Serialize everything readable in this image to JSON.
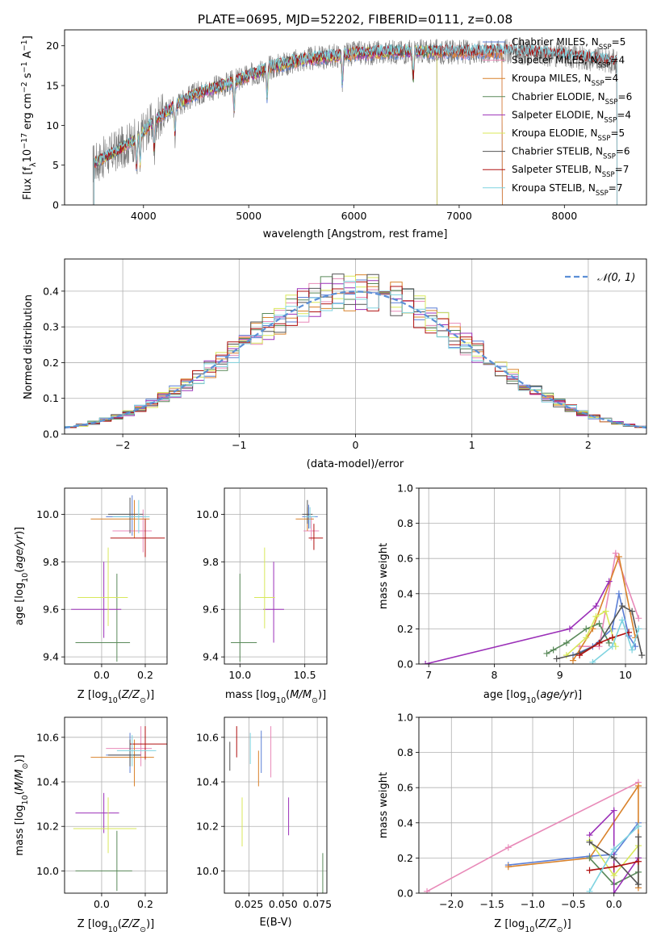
{
  "figure": {
    "title": "PLATE=0695, MJD=52202, FIBERID=0111, z=0.08"
  },
  "colors": {
    "chabrier_miles": "#5b7fd6",
    "salpeter_miles": "#e889b8",
    "kroupa_miles": "#d9822b",
    "chabrier_elodie": "#5a8a5a",
    "salpeter_elodie": "#9b30b8",
    "kroupa_elodie": "#d8e85a",
    "chabrier_stelib": "#555555",
    "salpeter_stelib": "#b01010",
    "kroupa_stelib": "#7fd3e0",
    "normal_fit": "#5b8fd6",
    "grid": "#b0b0b0"
  },
  "chart_data": [
    {
      "id": "spectrum",
      "type": "line",
      "xlabel": "wavelength [Angstrom, rest frame]",
      "ylabel": "Flux [f_λ 10^-17 erg cm^-2 s^-1 A^-1]",
      "xlim": [
        3250,
        8780
      ],
      "ylim": [
        0,
        22
      ],
      "xticks": [
        4000,
        5000,
        6000,
        7000,
        8000
      ],
      "yticks": [
        0,
        5,
        10,
        15,
        20
      ],
      "grid": false,
      "legend_position": "right",
      "continuum_points": [
        [
          3500,
          5
        ],
        [
          3700,
          6.5
        ],
        [
          3900,
          8
        ],
        [
          4100,
          10.5
        ],
        [
          4300,
          12.5
        ],
        [
          4500,
          14
        ],
        [
          4800,
          15.2
        ],
        [
          5000,
          16.2
        ],
        [
          5200,
          17.3
        ],
        [
          5500,
          18.2
        ],
        [
          5800,
          18.7
        ],
        [
          6000,
          19.0
        ],
        [
          6300,
          19.2
        ],
        [
          6600,
          19.3
        ],
        [
          7000,
          19.2
        ],
        [
          7500,
          19.3
        ],
        [
          8000,
          18.8
        ],
        [
          8300,
          18.3
        ],
        [
          8500,
          18
        ]
      ],
      "legend": [
        {
          "key": "chabrier_miles",
          "label": "Chabrier MILES, N",
          "sub": "SSP",
          "tail": "=5",
          "xmax": 7410
        },
        {
          "key": "salpeter_miles",
          "label": "Salpeter MILES, N",
          "sub": "SSP",
          "tail": "=4",
          "xmax": 7410
        },
        {
          "key": "kroupa_miles",
          "label": "Kroupa MILES, N",
          "sub": "SSP",
          "tail": "=4",
          "xmax": 7410
        },
        {
          "key": "chabrier_elodie",
          "label": "Chabrier ELODIE, N",
          "sub": "SSP",
          "tail": "=6",
          "xmax": 6790
        },
        {
          "key": "salpeter_elodie",
          "label": "Salpeter ELODIE, N",
          "sub": "SSP",
          "tail": "=4",
          "xmax": 6790
        },
        {
          "key": "kroupa_elodie",
          "label": "Kroupa ELODIE, N",
          "sub": "SSP",
          "tail": "=5",
          "xmax": 6790
        },
        {
          "key": "chabrier_stelib",
          "label": "Chabrier STELIB, N",
          "sub": "SSP",
          "tail": "=6",
          "xmax": 8500
        },
        {
          "key": "salpeter_stelib",
          "label": "Salpeter STELIB, N",
          "sub": "SSP",
          "tail": "=7",
          "xmax": 8500
        },
        {
          "key": "kroupa_stelib",
          "label": "Kroupa STELIB, N",
          "sub": "SSP",
          "tail": "=7",
          "xmax": 8500
        }
      ]
    },
    {
      "id": "residuals",
      "type": "histogram",
      "xlabel": "(data-model)/error",
      "ylabel": "Normed distribution",
      "xlim": [
        -2.5,
        2.5
      ],
      "ylim": [
        0,
        0.49
      ],
      "xticks": [
        -2,
        -1,
        0,
        1,
        2
      ],
      "yticks": [
        0.0,
        0.1,
        0.2,
        0.3,
        0.4
      ],
      "grid": true,
      "bin_width": 0.1,
      "legend_label": "𝒩(0, 1)",
      "legend_position": "top-right"
    },
    {
      "id": "age_vs_Z",
      "type": "errorbar",
      "xlabel": "Z [log10(Z/Z⊙)]",
      "ylabel": "age  [log10(age/yr)]",
      "xlim": [
        -0.17,
        0.3
      ],
      "ylim": [
        9.37,
        10.11
      ],
      "xticks": [
        0.0,
        0.2
      ],
      "yticks": [
        9.4,
        9.6,
        9.8,
        10.0
      ],
      "grid": true,
      "points": [
        {
          "key": "chabrier_miles",
          "x": 0.14,
          "xerr": [
            0.12,
            0.05
          ],
          "y": 9.99,
          "yerr": [
            0.08,
            0.09
          ]
        },
        {
          "key": "salpeter_miles",
          "x": 0.19,
          "xerr": [
            0.14,
            0.04
          ],
          "y": 9.93,
          "yerr": [
            0.09,
            0.09
          ]
        },
        {
          "key": "kroupa_miles",
          "x": 0.15,
          "xerr": [
            0.2,
            0.07
          ],
          "y": 9.98,
          "yerr": [
            0.08,
            0.08
          ]
        },
        {
          "key": "chabrier_elodie",
          "x": 0.07,
          "xerr": [
            0.19,
            0.06
          ],
          "y": 9.46,
          "yerr": [
            0.08,
            0.29
          ]
        },
        {
          "key": "salpeter_elodie",
          "x": 0.01,
          "xerr": [
            0.15,
            0.08
          ],
          "y": 9.6,
          "yerr": [
            0.12,
            0.2
          ]
        },
        {
          "key": "kroupa_elodie",
          "x": 0.03,
          "xerr": [
            0.14,
            0.09
          ],
          "y": 9.65,
          "yerr": [
            0.12,
            0.21
          ]
        },
        {
          "key": "chabrier_stelib",
          "x": 0.13,
          "xerr": [
            0.1,
            0.06
          ],
          "y": 10.0,
          "yerr": [
            0.08,
            0.07
          ]
        },
        {
          "key": "salpeter_stelib",
          "x": 0.2,
          "xerr": [
            0.16,
            0.09
          ],
          "y": 9.9,
          "yerr": [
            0.08,
            0.08
          ]
        },
        {
          "key": "kroupa_stelib",
          "x": 0.17,
          "xerr": [
            0.12,
            0.05
          ],
          "y": 9.99,
          "yerr": [
            0.07,
            0.07
          ]
        }
      ]
    },
    {
      "id": "age_vs_mass",
      "type": "errorbar",
      "xlabel": "mass [log10(M/M⊙)]",
      "ylabel": "",
      "xlim": [
        9.88,
        10.67
      ],
      "ylim": [
        9.37,
        10.11
      ],
      "xticks": [
        10.0,
        10.5
      ],
      "yticks": [
        9.4,
        9.6,
        9.8,
        10.0
      ],
      "grid": true,
      "points": [
        {
          "key": "chabrier_miles",
          "x": 10.53,
          "xerr": [
            0.05,
            0.07
          ],
          "y": 9.99,
          "yerr": [
            0.05,
            0.05
          ]
        },
        {
          "key": "salpeter_miles",
          "x": 10.55,
          "xerr": [
            0.06,
            0.06
          ],
          "y": 9.93,
          "yerr": [
            0.04,
            0.06
          ]
        },
        {
          "key": "kroupa_miles",
          "x": 10.52,
          "xerr": [
            0.09,
            0.05
          ],
          "y": 9.98,
          "yerr": [
            0.05,
            0.05
          ]
        },
        {
          "key": "chabrier_elodie",
          "x": 10.0,
          "xerr": [
            0.07,
            0.13
          ],
          "y": 9.46,
          "yerr": [
            0.08,
            0.29
          ]
        },
        {
          "key": "salpeter_elodie",
          "x": 10.26,
          "xerr": [
            0.08,
            0.08
          ],
          "y": 9.6,
          "yerr": [
            0.14,
            0.2
          ]
        },
        {
          "key": "kroupa_elodie",
          "x": 10.19,
          "xerr": [
            0.08,
            0.08
          ],
          "y": 9.65,
          "yerr": [
            0.13,
            0.21
          ]
        },
        {
          "key": "chabrier_stelib",
          "x": 10.52,
          "xerr": [
            0.04,
            0.04
          ],
          "y": 10.0,
          "yerr": [
            0.04,
            0.06
          ]
        },
        {
          "key": "salpeter_stelib",
          "x": 10.57,
          "xerr": [
            0.04,
            0.07
          ],
          "y": 9.9,
          "yerr": [
            0.05,
            0.06
          ]
        },
        {
          "key": "kroupa_stelib",
          "x": 10.54,
          "xerr": [
            0.04,
            0.04
          ],
          "y": 9.99,
          "yerr": [
            0.05,
            0.04
          ]
        }
      ]
    },
    {
      "id": "weights_vs_age",
      "type": "line",
      "xlabel": "age  [log10(age/yr)]",
      "ylabel": "mass weight",
      "xlim": [
        6.85,
        10.32
      ],
      "ylim": [
        0,
        1.0
      ],
      "xticks": [
        7,
        8,
        9,
        10
      ],
      "yticks": [
        0.0,
        0.2,
        0.4,
        0.6,
        0.8,
        1.0
      ],
      "grid": true,
      "series": [
        {
          "key": "chabrier_miles",
          "x": [
            9.2,
            9.5,
            9.8,
            9.9,
            10.05,
            10.15
          ],
          "y": [
            0.05,
            0.1,
            0.2,
            0.4,
            0.16,
            0.1
          ]
        },
        {
          "key": "salpeter_miles",
          "x": [
            9.3,
            9.6,
            9.85,
            10.2
          ],
          "y": [
            0.1,
            0.1,
            0.63,
            0.26
          ]
        },
        {
          "key": "kroupa_miles",
          "x": [
            9.2,
            9.5,
            9.9,
            10.15
          ],
          "y": [
            0.02,
            0.2,
            0.61,
            0.15
          ]
        },
        {
          "key": "chabrier_elodie",
          "x": [
            8.8,
            8.9,
            9.1,
            9.4,
            9.6,
            9.75
          ],
          "y": [
            0.06,
            0.08,
            0.12,
            0.2,
            0.23,
            0.12
          ]
        },
        {
          "key": "salpeter_elodie",
          "x": [
            6.95,
            9.15,
            9.55,
            9.75
          ],
          "y": [
            0.0,
            0.2,
            0.33,
            0.47
          ]
        },
        {
          "key": "kroupa_elodie",
          "x": [
            9.1,
            9.4,
            9.55,
            9.7,
            9.85
          ],
          "y": [
            0.05,
            0.15,
            0.27,
            0.3,
            0.1
          ]
        },
        {
          "key": "chabrier_stelib",
          "x": [
            8.95,
            9.3,
            9.6,
            9.95,
            10.1,
            10.25
          ],
          "y": [
            0.03,
            0.06,
            0.12,
            0.33,
            0.3,
            0.05
          ]
        },
        {
          "key": "salpeter_stelib",
          "x": [
            9.3,
            9.6,
            9.8,
            10.05
          ],
          "y": [
            0.05,
            0.12,
            0.15,
            0.18
          ]
        },
        {
          "key": "kroupa_stelib",
          "x": [
            9.5,
            9.8,
            9.95,
            10.1,
            10.2
          ],
          "y": [
            0.01,
            0.1,
            0.25,
            0.08,
            0.2
          ]
        }
      ]
    },
    {
      "id": "mass_vs_Z",
      "type": "errorbar",
      "xlabel": "Z [log10(Z/Z⊙)]",
      "ylabel": "mass [log10(M/M⊙)]",
      "xlim": [
        -0.17,
        0.3
      ],
      "ylim": [
        9.9,
        10.69
      ],
      "xticks": [
        0.0,
        0.2
      ],
      "yticks": [
        10.0,
        10.2,
        10.4,
        10.6
      ],
      "grid": true,
      "points": [
        {
          "key": "chabrier_miles",
          "x": 0.13,
          "xerr": [
            0.11,
            0.05
          ],
          "y": 10.52,
          "yerr": [
            0.08,
            0.1
          ]
        },
        {
          "key": "salpeter_miles",
          "x": 0.18,
          "xerr": [
            0.16,
            0.05
          ],
          "y": 10.55,
          "yerr": [
            0.08,
            0.1
          ]
        },
        {
          "key": "kroupa_miles",
          "x": 0.15,
          "xerr": [
            0.2,
            0.09
          ],
          "y": 10.51,
          "yerr": [
            0.13,
            0.08
          ]
        },
        {
          "key": "chabrier_elodie",
          "x": 0.07,
          "xerr": [
            0.19,
            0.07
          ],
          "y": 10.0,
          "yerr": [
            0.09,
            0.18
          ]
        },
        {
          "key": "salpeter_elodie",
          "x": 0.01,
          "xerr": [
            0.13,
            0.07
          ],
          "y": 10.26,
          "yerr": [
            0.09,
            0.09
          ]
        },
        {
          "key": "kroupa_elodie",
          "x": 0.03,
          "xerr": [
            0.16,
            0.13
          ],
          "y": 10.19,
          "yerr": [
            0.11,
            0.14
          ]
        },
        {
          "key": "chabrier_stelib",
          "x": 0.13,
          "xerr": [
            0.1,
            0.05
          ],
          "y": 10.52,
          "yerr": [
            0.05,
            0.07
          ]
        },
        {
          "key": "salpeter_stelib",
          "x": 0.2,
          "xerr": [
            0.07,
            0.1
          ],
          "y": 10.57,
          "yerr": [
            0.07,
            0.08
          ]
        },
        {
          "key": "kroupa_stelib",
          "x": 0.14,
          "xerr": [
            0.07,
            0.11
          ],
          "y": 10.54,
          "yerr": [
            0.07,
            0.07
          ]
        }
      ]
    },
    {
      "id": "mass_vs_ebv",
      "type": "errorbar",
      "xlabel": "E(B-V)",
      "ylabel": "",
      "xlim": [
        0.007,
        0.082
      ],
      "ylim": [
        9.9,
        10.69
      ],
      "xticks": [
        0.025,
        0.05,
        0.075
      ],
      "yticks": [
        10.0,
        10.2,
        10.4,
        10.6
      ],
      "grid": true,
      "points": [
        {
          "key": "chabrier_miles",
          "x": 0.034,
          "yerr": [
            0.09,
            0.1
          ],
          "y": 10.53
        },
        {
          "key": "salpeter_miles",
          "x": 0.041,
          "yerr": [
            0.12,
            0.11
          ],
          "y": 10.54
        },
        {
          "key": "kroupa_miles",
          "x": 0.032,
          "yerr": [
            0.08,
            0.08
          ],
          "y": 10.46
        },
        {
          "key": "chabrier_elodie",
          "x": 0.079,
          "yerr": [
            0.14,
            0.07
          ],
          "y": 10.01
        },
        {
          "key": "salpeter_elodie",
          "x": 0.054,
          "yerr": [
            0.09,
            0.08
          ],
          "y": 10.25
        },
        {
          "key": "kroupa_elodie",
          "x": 0.02,
          "yerr": [
            0.09,
            0.13
          ],
          "y": 10.2
        },
        {
          "key": "chabrier_stelib",
          "x": 0.011,
          "yerr": [
            0.06,
            0.07
          ],
          "y": 10.51
        },
        {
          "key": "salpeter_stelib",
          "x": 0.016,
          "yerr": [
            0.06,
            0.08
          ],
          "y": 10.57
        },
        {
          "key": "kroupa_stelib",
          "x": 0.026,
          "yerr": [
            0.07,
            0.07
          ],
          "y": 10.55
        }
      ]
    },
    {
      "id": "weights_vs_Z",
      "type": "line",
      "xlabel": "Z [log10(Z/Z⊙)]",
      "ylabel": "mass weight",
      "xlim": [
        -2.4,
        0.4
      ],
      "ylim": [
        0,
        1.0
      ],
      "xticks": [
        -2.0,
        -1.5,
        -1.0,
        -0.5,
        0.0
      ],
      "yticks": [
        0.0,
        0.2,
        0.4,
        0.6,
        0.8,
        1.0
      ],
      "grid": true,
      "series": [
        {
          "key": "chabrier_miles",
          "x": [
            -1.3,
            -0.3,
            0.0,
            0.3
          ],
          "y": [
            0.16,
            0.21,
            0.22,
            0.4
          ]
        },
        {
          "key": "salpeter_miles",
          "x": [
            -2.3,
            -1.3,
            0.3
          ],
          "y": [
            0.01,
            0.26,
            0.63
          ]
        },
        {
          "key": "kroupa_miles",
          "x": [
            -1.3,
            -0.3,
            0.3,
            0.3
          ],
          "y": [
            0.15,
            0.2,
            0.61,
            0.03
          ]
        },
        {
          "key": "chabrier_elodie",
          "x": [
            -0.3,
            0.0,
            0.3
          ],
          "y": [
            0.2,
            0.05,
            0.12
          ]
        },
        {
          "key": "salpeter_elodie",
          "x": [
            -0.3,
            0.0,
            0.0,
            0.3
          ],
          "y": [
            0.33,
            0.47,
            0.0,
            0.2
          ]
        },
        {
          "key": "kroupa_elodie",
          "x": [
            -0.3,
            0.0,
            0.3
          ],
          "y": [
            0.3,
            0.1,
            0.27
          ]
        },
        {
          "key": "chabrier_stelib",
          "x": [
            -0.3,
            0.0,
            0.3,
            0.3
          ],
          "y": [
            0.29,
            0.2,
            0.05,
            0.32
          ]
        },
        {
          "key": "salpeter_stelib",
          "x": [
            -0.3,
            0.0,
            0.3
          ],
          "y": [
            0.13,
            0.15,
            0.18
          ]
        },
        {
          "key": "kroupa_stelib",
          "x": [
            -0.3,
            0.0,
            0.3
          ],
          "y": [
            0.01,
            0.25,
            0.38
          ]
        }
      ]
    }
  ]
}
